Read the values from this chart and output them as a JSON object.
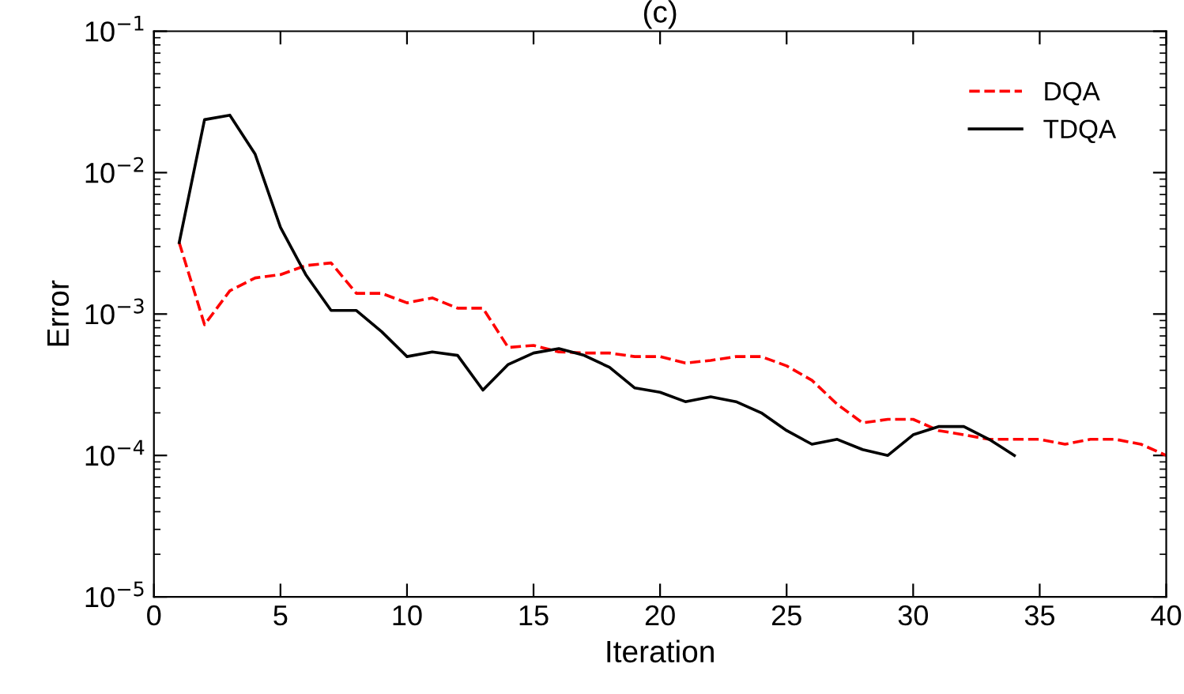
{
  "chart_data": {
    "type": "line",
    "title": "(c)",
    "xlabel": "Iteration",
    "ylabel": "Error",
    "log": "y",
    "grid": false,
    "legend": "top right",
    "xlim": [
      0,
      40
    ],
    "xticks": [
      0,
      5,
      10,
      15,
      20,
      25,
      30,
      35,
      40
    ],
    "ylim": [
      1e-05,
      0.1
    ],
    "yticks": [
      {
        "value": 1e-05,
        "label": "10$^{−5}$"
      },
      {
        "value": 0.0001,
        "label": "10$^{−4}$"
      },
      {
        "value": 0.001,
        "label": "10$^{−3}$"
      },
      {
        "value": 0.01,
        "label": "10$^{−2}$"
      },
      {
        "value": 0.1,
        "label": "10$^{−1}$"
      }
    ],
    "series": [
      {
        "name": "DQA",
        "color": "#ff0000",
        "line_style": "dashed",
        "x": [
          1,
          2,
          3,
          4,
          5,
          6,
          7,
          8,
          9,
          10,
          11,
          12,
          13,
          14,
          15,
          16,
          17,
          18,
          19,
          20,
          21,
          22,
          23,
          24,
          25,
          26,
          27,
          28,
          29,
          30,
          31,
          32,
          33,
          34,
          35,
          36,
          37,
          38,
          39,
          40
        ],
        "values": [
          0.0032,
          0.00084,
          0.00146,
          0.0018,
          0.0019,
          0.0022,
          0.0023,
          0.0014,
          0.0014,
          0.0012,
          0.0013,
          0.0011,
          0.0011,
          0.00058,
          0.0006,
          0.00054,
          0.00053,
          0.00053,
          0.0005,
          0.0005,
          0.00045,
          0.00047,
          0.0005,
          0.0005,
          0.00043,
          0.00034,
          0.00023,
          0.00017,
          0.00018,
          0.00018,
          0.00015,
          0.00014,
          0.00013,
          0.00013,
          0.00013,
          0.00012,
          0.00013,
          0.00013,
          0.00012,
          0.0001
        ]
      },
      {
        "name": "TDQA",
        "color": "#000000",
        "line_style": "solid",
        "x": [
          1,
          2,
          3,
          4,
          5,
          6,
          7,
          8,
          9,
          10,
          11,
          12,
          13,
          14,
          15,
          16,
          17,
          18,
          19,
          20,
          21,
          22,
          23,
          24,
          25,
          26,
          27,
          28,
          29,
          30,
          31,
          32,
          33,
          34
        ],
        "values": [
          0.0032,
          0.0237,
          0.0255,
          0.0135,
          0.0041,
          0.0019,
          0.00106,
          0.00106,
          0.00075,
          0.0005,
          0.00054,
          0.00051,
          0.00029,
          0.00044,
          0.00053,
          0.00057,
          0.00051,
          0.00042,
          0.0003,
          0.00028,
          0.00024,
          0.00026,
          0.00024,
          0.0002,
          0.00015,
          0.00012,
          0.00013,
          0.00011,
          0.0001,
          0.00014,
          0.00016,
          0.00016,
          0.00013,
          0.0001
        ]
      }
    ]
  }
}
